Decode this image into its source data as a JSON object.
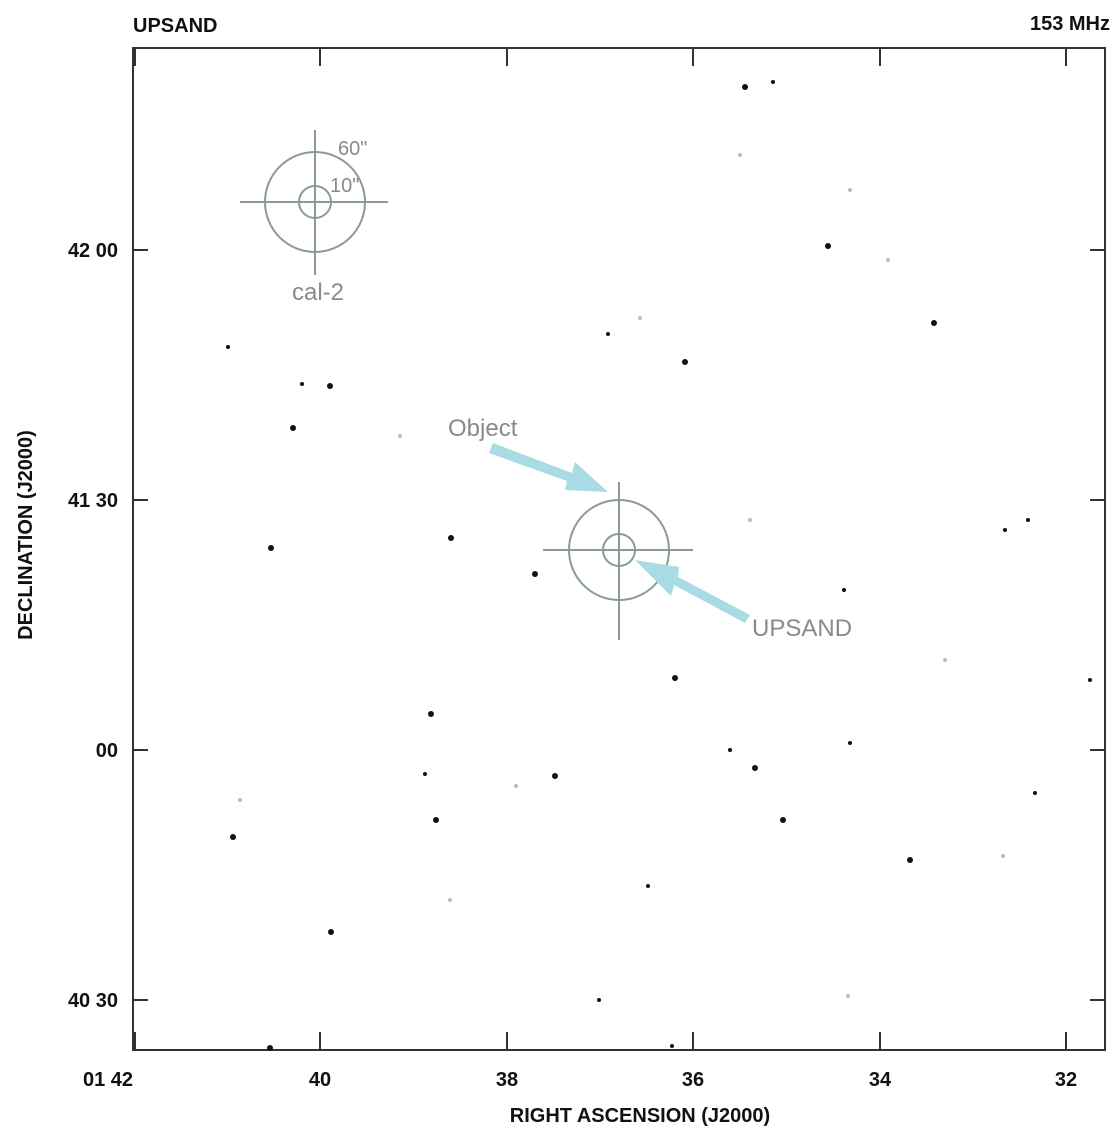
{
  "header": {
    "title": "UPSAND",
    "frequency": "153 MHz"
  },
  "axes": {
    "y_label": "DECLINATION (J2000)",
    "x_label": "RIGHT ASCENSION (J2000)",
    "y_ticks": [
      "42 00",
      "41 30",
      "00",
      "40 30"
    ],
    "x_ticks": [
      "01 42",
      "40",
      "38",
      "36",
      "34",
      "32"
    ]
  },
  "annotations": {
    "beam_outer": "60\"",
    "beam_inner": "10\"",
    "calibrator": "cal-2",
    "object": "Object",
    "target": "UPSAND"
  }
}
